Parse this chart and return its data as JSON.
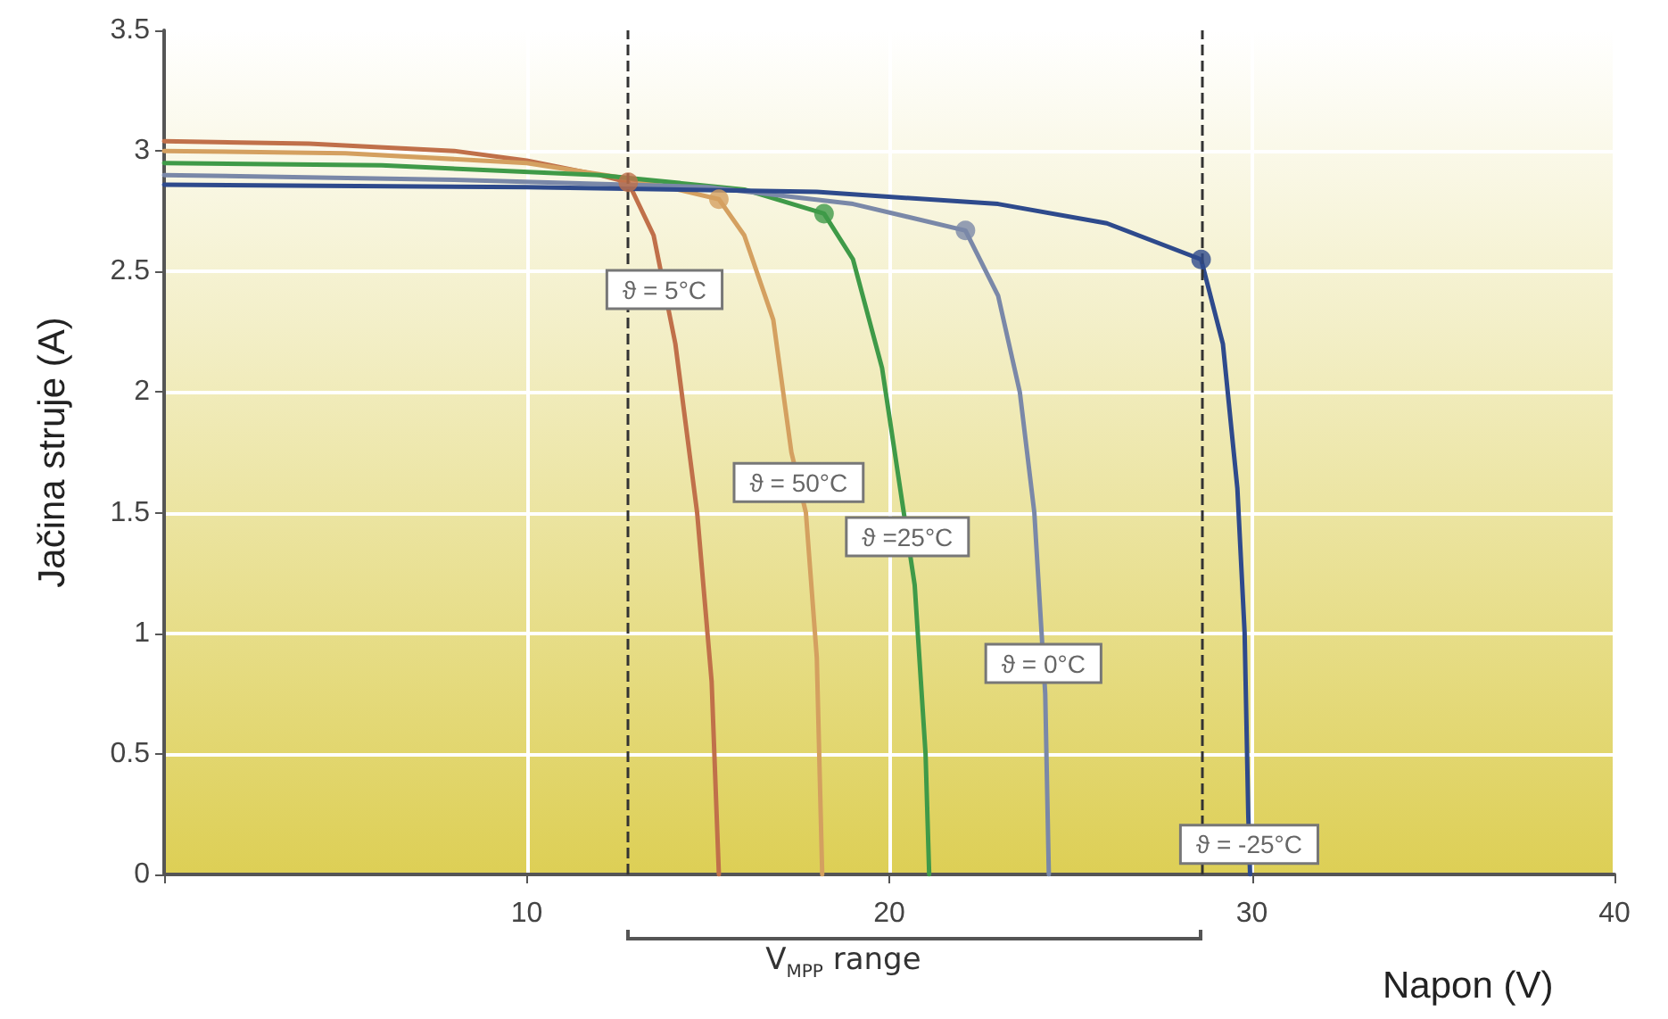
{
  "chart_data": {
    "type": "line",
    "xlabel": "Napon (V)",
    "ylabel": "Jačina struje (A)",
    "xlim": [
      0,
      40
    ],
    "xticks": [
      {
        "value": 0,
        "label": null
      },
      10,
      20,
      30,
      40
    ],
    "ylim": [
      0,
      3.5
    ],
    "yticks": [
      0,
      0.5,
      1,
      1.5,
      2,
      2.5,
      3,
      3.5
    ],
    "grid": true,
    "series": [
      {
        "name": "ϑ = 5°C",
        "color": "#c0704a",
        "x": [
          0,
          4,
          8,
          10,
          12,
          12.8,
          13.5,
          14.1,
          14.7,
          15.1,
          15.3
        ],
        "values": [
          3.04,
          3.03,
          3.0,
          2.96,
          2.9,
          2.87,
          2.65,
          2.2,
          1.5,
          0.8,
          0
        ]
      },
      {
        "name": "ϑ = 50°C",
        "color": "#d4a060",
        "x": [
          0,
          5,
          10,
          13,
          15.3,
          16,
          16.8,
          17.3,
          17.7,
          18.0,
          18.15
        ],
        "values": [
          3.0,
          2.99,
          2.95,
          2.88,
          2.8,
          2.65,
          2.3,
          1.75,
          1.5,
          0.9,
          0
        ]
      },
      {
        "name": "ϑ =25°C",
        "color": "#3f9a48",
        "x": [
          0,
          6,
          12,
          16,
          18.2,
          19,
          19.8,
          20.3,
          20.7,
          21.0,
          21.1
        ],
        "values": [
          2.95,
          2.94,
          2.9,
          2.84,
          2.74,
          2.55,
          2.1,
          1.6,
          1.2,
          0.5,
          0
        ]
      },
      {
        "name": "ϑ = 0°C",
        "color": "#7a88a8",
        "x": [
          0,
          8,
          15,
          19,
          22.1,
          23,
          23.6,
          24,
          24.2,
          24.3,
          24.4
        ],
        "values": [
          2.9,
          2.88,
          2.85,
          2.78,
          2.67,
          2.4,
          2.0,
          1.5,
          1.0,
          0.75,
          0
        ]
      },
      {
        "name": "ϑ = -25°C",
        "color": "#2e4a8c",
        "x": [
          0,
          10,
          18,
          23,
          26,
          28.6,
          29.2,
          29.6,
          29.8,
          29.9,
          29.95
        ],
        "values": [
          2.86,
          2.85,
          2.83,
          2.78,
          2.7,
          2.55,
          2.2,
          1.6,
          1.0,
          0.25,
          0
        ]
      },
      {
        "type": "scatter",
        "color": "#c0704a",
        "x": [
          12.8
        ],
        "values": [
          2.87
        ]
      },
      {
        "type": "scatter",
        "color": "#d4a060",
        "x": [
          15.3
        ],
        "values": [
          2.8
        ]
      },
      {
        "type": "scatter",
        "color": "#3f9a48",
        "x": [
          18.2
        ],
        "values": [
          2.74
        ]
      },
      {
        "type": "scatter",
        "color": "#7a88a8",
        "x": [
          22.1
        ],
        "values": [
          2.67
        ]
      },
      {
        "type": "scatter",
        "color": "#2e4a8c",
        "x": [
          28.6
        ],
        "values": [
          2.55
        ]
      }
    ],
    "ref_lines": [
      {
        "axis": "x",
        "value": 12.8,
        "label": null,
        "color": "#333333",
        "line_style": "dashed"
      },
      {
        "axis": "x",
        "value": 28.6,
        "label": null,
        "color": "#333333",
        "line_style": "dashed"
      }
    ],
    "annotations": [
      "V$_{MPP}$ range"
    ]
  }
}
